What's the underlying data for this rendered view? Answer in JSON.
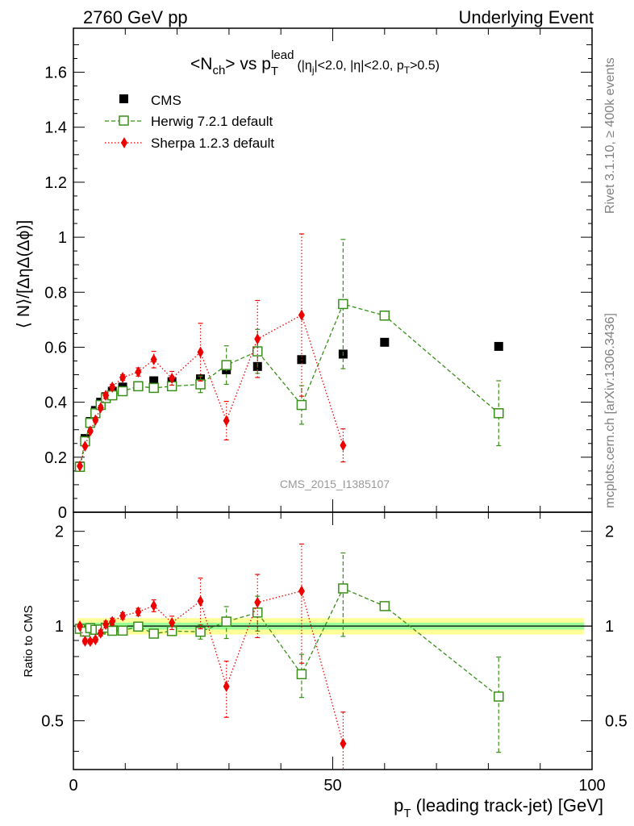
{
  "header": {
    "left": "2760 GeV pp",
    "right": "Underlying Event"
  },
  "side_labels": {
    "rivet": "Rivet 3.1.10, ≥ 400k events",
    "mcplots": "mcplots.cern.ch [arXiv:1306.3436]"
  },
  "colors": {
    "cms": "#000000",
    "herwig": "#3a8f1a",
    "sherpa": "#ee0000",
    "band_yellow": "#ffff99",
    "band_green": "#99ff99"
  },
  "chart_data": {
    "type": "scatter",
    "title_parts": {
      "nch": "<N",
      "nch_sub": "ch",
      "vs": "> vs p",
      "pt_sub": "T",
      "pt_sup": "lead",
      "cut1": "(|η",
      "cut1_sub": "j",
      "cut2": "|<2.0, |η|<2.0, p",
      "cut2_sub": "T",
      "cut3": ">0.5)"
    },
    "analysis_label": "CMS_2015_I1385107",
    "xlabel_main": "p",
    "xlabel_sub": "T",
    "xlabel_rest": " (leading track-jet) [GeV]",
    "ylabel": "⟨ N⟩/[ΔηΔ(Δϕ)]",
    "ratio_ylabel": "Ratio to CMS",
    "xlim": [
      0,
      100
    ],
    "ylim": [
      0,
      1.76
    ],
    "ratio_ylim": [
      0.35,
      2.3
    ],
    "x_ticks": [
      "0",
      "50",
      "100"
    ],
    "y_ticks": [
      "0",
      "0.2",
      "0.4",
      "0.6",
      "0.8",
      "1",
      "1.2",
      "1.4",
      "1.6"
    ],
    "ratio_ticks_left": [
      "0.5",
      "1",
      "2"
    ],
    "ratio_ticks_right": [
      "0.5",
      "1",
      "2"
    ],
    "legend": [
      "CMS",
      "Herwig 7.2.1 default",
      "Sherpa 1.2.3 default"
    ],
    "series": [
      {
        "name": "CMS",
        "x": [
          1.25,
          2.25,
          3.25,
          4.25,
          5.25,
          6.25,
          7.5,
          9.5,
          12.5,
          15.5,
          19,
          24.5,
          29.5,
          35.5,
          44,
          52,
          60,
          82
        ],
        "y": [
          0.168,
          0.268,
          0.33,
          0.37,
          0.4,
          0.42,
          0.44,
          0.455,
          0.46,
          0.478,
          0.475,
          0.485,
          0.518,
          0.53,
          0.555,
          0.575,
          0.618,
          0.603
        ]
      },
      {
        "name": "Herwig 7.2.1 default",
        "x": [
          1.25,
          2.25,
          3.25,
          4.25,
          5.25,
          6.25,
          7.5,
          9.5,
          12.5,
          15.5,
          19,
          24.5,
          29.5,
          35.5,
          44,
          52,
          60,
          82
        ],
        "y": [
          0.165,
          0.258,
          0.325,
          0.36,
          0.39,
          0.415,
          0.425,
          0.44,
          0.458,
          0.452,
          0.458,
          0.465,
          0.535,
          0.585,
          0.39,
          0.757,
          0.715,
          0.36
        ],
        "err": [
          0.005,
          0.005,
          0.006,
          0.006,
          0.007,
          0.008,
          0.008,
          0.008,
          0.01,
          0.01,
          0.015,
          0.03,
          0.07,
          0.08,
          0.07,
          0.235,
          0.0,
          0.118
        ],
        "ratio": [
          0.98,
          0.96,
          0.985,
          0.973,
          0.975,
          0.988,
          0.966,
          0.967,
          0.996,
          0.946,
          0.964,
          0.959,
          1.033,
          1.104,
          0.703,
          1.317,
          1.157,
          0.597
        ],
        "ratio_err": [
          0.01,
          0.01,
          0.01,
          0.01,
          0.015,
          0.015,
          0.015,
          0.015,
          0.02,
          0.02,
          0.03,
          0.05,
          0.12,
          0.14,
          0.11,
          0.39,
          0.0,
          0.2
        ]
      },
      {
        "name": "Sherpa 1.2.3 default",
        "x": [
          1.25,
          2.25,
          3.25,
          4.25,
          5.25,
          6.25,
          7.5,
          9.5,
          12.5,
          15.5,
          19,
          24.5,
          29.5,
          35.5,
          44,
          52
        ],
        "y": [
          0.168,
          0.24,
          0.295,
          0.335,
          0.38,
          0.425,
          0.455,
          0.49,
          0.51,
          0.555,
          0.487,
          0.582,
          0.333,
          0.63,
          0.717,
          0.243
        ],
        "err": [
          0.005,
          0.005,
          0.006,
          0.007,
          0.008,
          0.01,
          0.01,
          0.01,
          0.015,
          0.03,
          0.025,
          0.105,
          0.07,
          0.14,
          0.295,
          0.06
        ],
        "ratio": [
          1.0,
          0.895,
          0.894,
          0.905,
          0.95,
          1.012,
          1.034,
          1.077,
          1.109,
          1.161,
          1.025,
          1.2,
          0.643,
          1.189,
          1.292,
          0.423
        ],
        "ratio_err": [
          0.01,
          0.015,
          0.015,
          0.015,
          0.02,
          0.025,
          0.025,
          0.025,
          0.03,
          0.05,
          0.05,
          0.22,
          0.13,
          0.27,
          0.53,
          0.11
        ]
      }
    ],
    "cms_band_inner": 0.025,
    "cms_band_outer": 0.06
  }
}
